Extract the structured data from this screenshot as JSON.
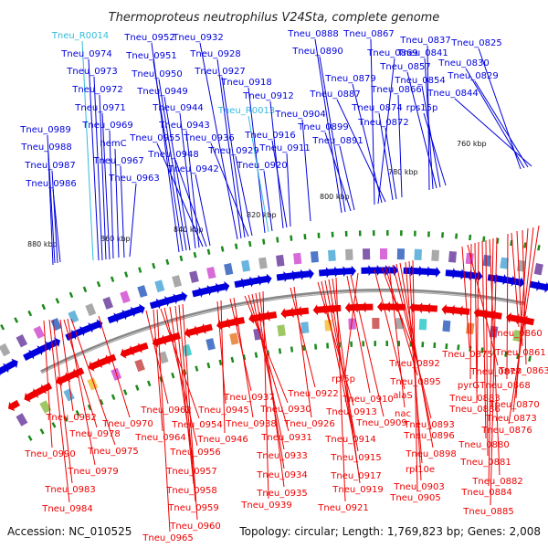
{
  "title": "Thermoproteus neutrophilus V24Sta, complete genome",
  "footer": {
    "accession": "Accession: NC_010525",
    "summary": "Topology: circular; Length: 1,769,823 bp; Genes: 2,008"
  },
  "colors": {
    "forward": "#0000dd",
    "reverse": "#ee0000",
    "rna": "#33bbdd",
    "backbone": "#888888",
    "tick": "#1a8a1a"
  },
  "scale_labels": [
    "880 kbp",
    "860 kbp",
    "840 kbp",
    "820 kbp",
    "800 kbp",
    "780 kbp",
    "760 kbp"
  ],
  "forward_genes": [
    "Tneu_R0014",
    "Tneu_0974",
    "Tneu_0973",
    "Tneu_0972",
    "Tneu_0971",
    "Tneu_0989",
    "Tneu_0969",
    "hemC",
    "Tneu_0988",
    "Tneu_0967",
    "Tneu_0987",
    "Tneu_0963",
    "Tneu_0986",
    "Tneu_0952",
    "Tneu_0951",
    "Tneu_0950",
    "Tneu_0949",
    "Tneu_0944",
    "Tneu_0943",
    "Tneu_0955",
    "Tneu_0948",
    "Tneu_0942",
    "Tneu_0932",
    "Tneu_0928",
    "Tneu_0927",
    "Tneu_0936",
    "Tneu_0929",
    "Tneu_0918",
    "Tneu_R0013",
    "Tneu_0920",
    "Tneu_0912",
    "Tneu_0916",
    "Tneu_0911",
    "Tneu_0904",
    "Tneu_0888",
    "Tneu_0890",
    "Tneu_0899",
    "Tneu_0891",
    "Tneu_0867",
    "Tneu_0869",
    "Tneu_0879",
    "Tneu_0887",
    "Tneu_0874",
    "Tneu_0872",
    "Tneu_0866",
    "Tneu_0837",
    "Tneu_0841",
    "Tneu_0857",
    "Tneu_0854",
    "rps15p",
    "Tneu_0825",
    "Tneu_0830",
    "Tneu_0829",
    "Tneu_0844"
  ],
  "reverse_genes": [
    "Tneu_0982",
    "Tneu_0978",
    "Tneu_0990",
    "Tneu_0975",
    "Tneu_0979",
    "Tneu_0983",
    "Tneu_0984",
    "Tneu_0970",
    "Tneu_0962",
    "Tneu_0954",
    "Tneu_0964",
    "Tneu_0956",
    "Tneu_0957",
    "Tneu_0958",
    "Tneu_0959",
    "Tneu_0960",
    "Tneu_0965",
    "Tneu_0945",
    "Tneu_0946",
    "Tneu_0937",
    "Tneu_0938",
    "Tneu_0930",
    "Tneu_0931",
    "Tneu_0933",
    "Tneu_0934",
    "Tneu_0935",
    "Tneu_0939",
    "Tneu_0922",
    "Tneu_0926",
    "Tneu_0913",
    "Tneu_0914",
    "Tneu_0915",
    "Tneu_0917",
    "Tneu_0919",
    "Tneu_0921",
    "Tneu_0910",
    "Tneu_0909",
    "rpl5p",
    "alaS",
    "Tneu_0892",
    "Tneu_0895",
    "nac",
    "Tneu_0893",
    "Tneu_0896",
    "Tneu_0898",
    "rpl10e",
    "Tneu_0903",
    "Tneu_0905",
    "Tneu_0875",
    "Tneu_0877",
    "pyrG",
    "Tneu_0883",
    "Tneu_0886",
    "Tneu_0880",
    "Tneu_0881",
    "Tneu_0882",
    "Tneu_0884",
    "Tneu_0885",
    "Tneu_0860",
    "Tneu_0861",
    "Tneu_0863",
    "Tneu_0868",
    "Tneu_0870",
    "Tneu_0873",
    "Tneu_0876"
  ]
}
